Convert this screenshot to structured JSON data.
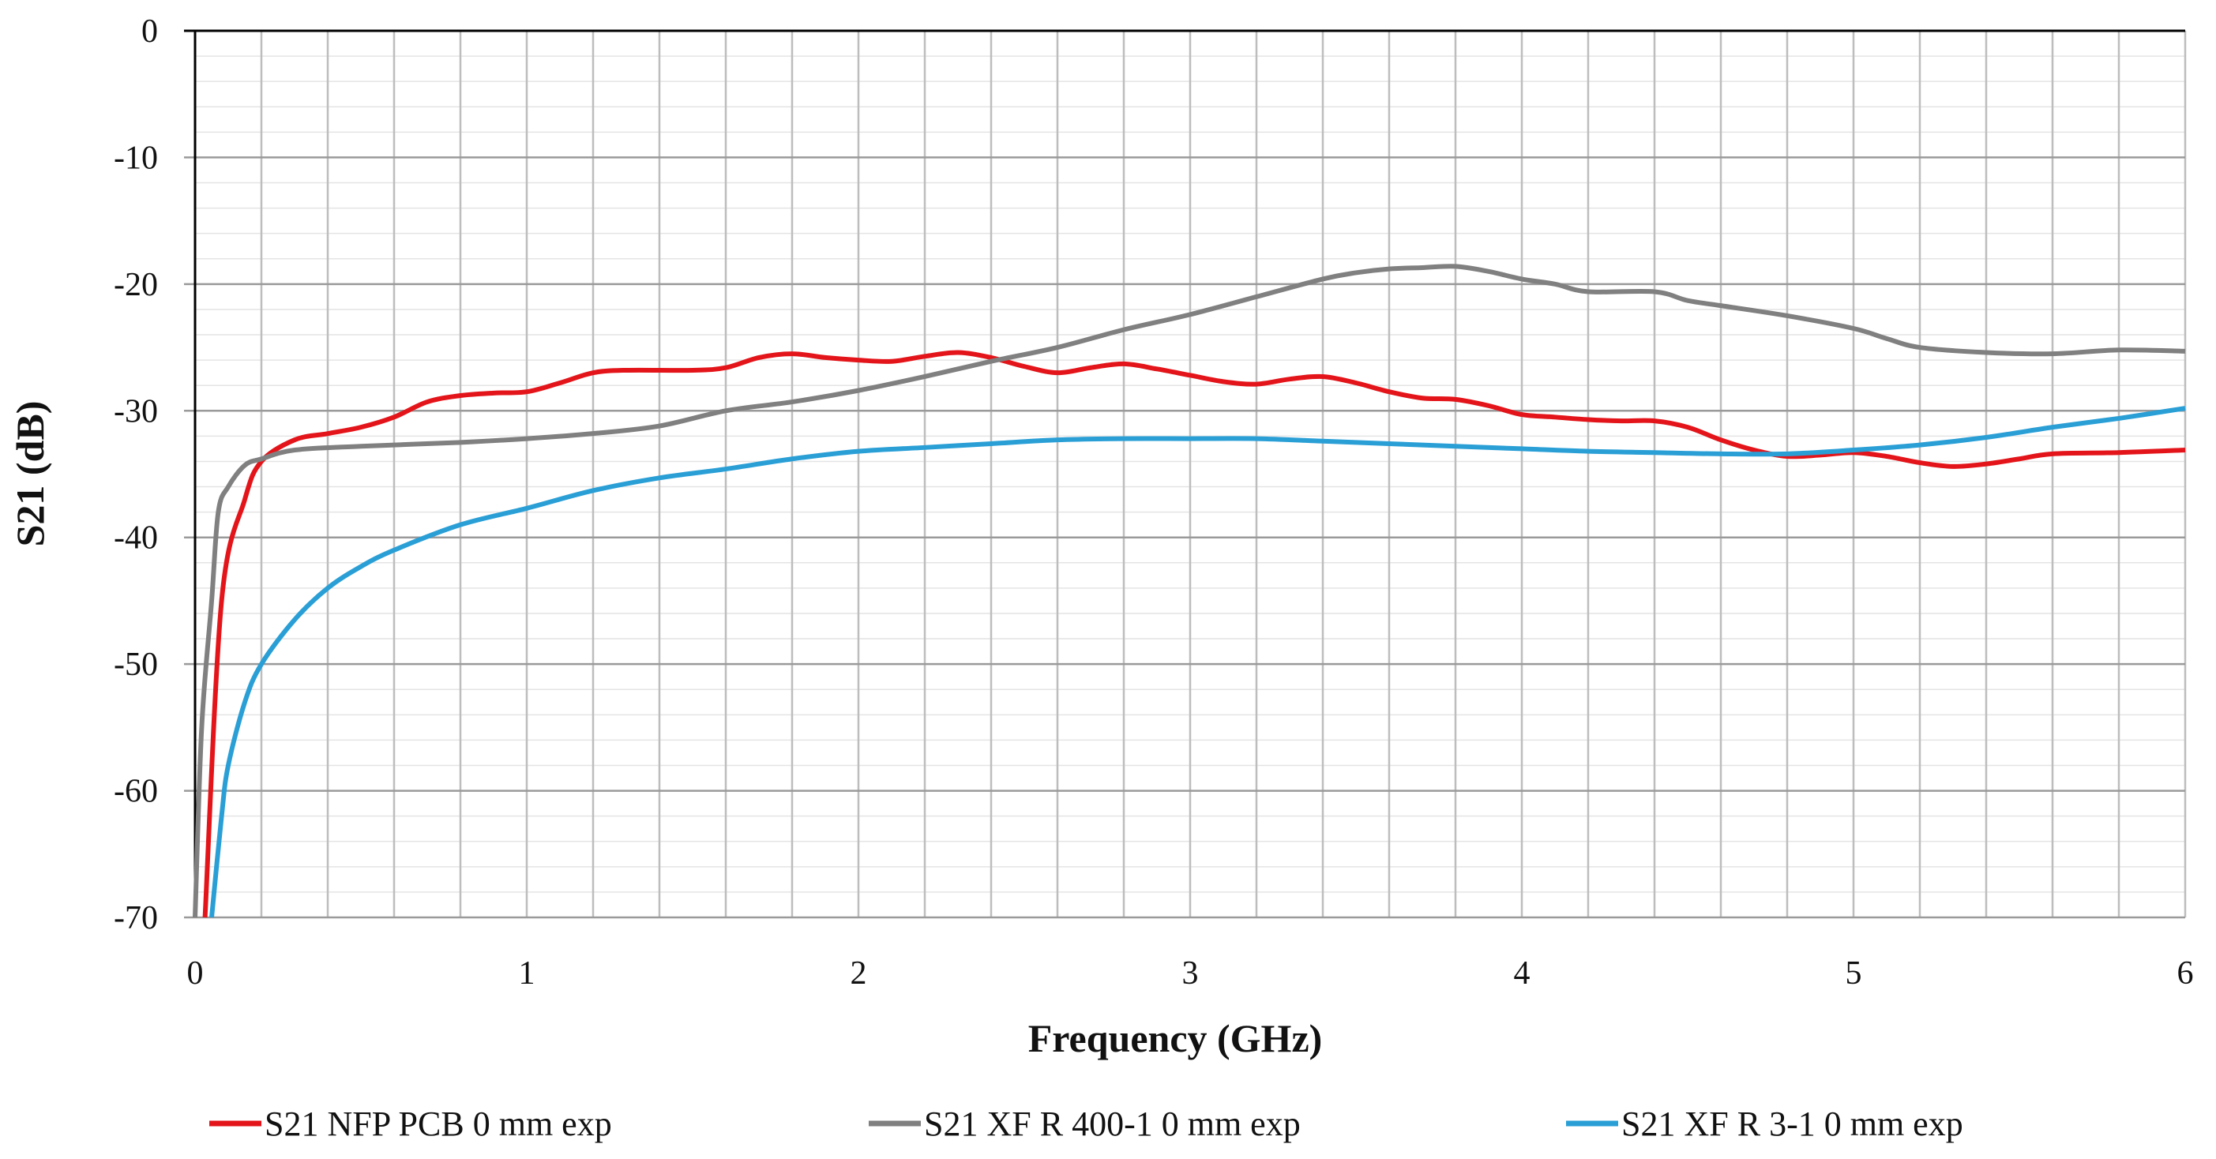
{
  "chart_data": {
    "type": "line",
    "title": "",
    "xlabel": "Frequency (GHz)",
    "ylabel": "S21 (dB)",
    "xlim": [
      0,
      6
    ],
    "ylim": [
      -70,
      0
    ],
    "xticks": [
      "0",
      "1",
      "2",
      "3",
      "4",
      "5",
      "6"
    ],
    "yticks": [
      "0",
      "-10",
      "-20",
      "-30",
      "-40",
      "-50",
      "-60",
      "-70"
    ],
    "grid": true,
    "legend_position": "bottom",
    "series": [
      {
        "name": "S21 NFP PCB 0 mm exp",
        "color": "#e3151a",
        "x": [
          0.03,
          0.08,
          0.15,
          0.2,
          0.3,
          0.4,
          0.5,
          0.6,
          0.7,
          0.8,
          0.9,
          1.0,
          1.1,
          1.2,
          1.3,
          1.5,
          1.6,
          1.7,
          1.8,
          1.9,
          2.0,
          2.1,
          2.2,
          2.3,
          2.4,
          2.5,
          2.6,
          2.7,
          2.8,
          2.9,
          3.0,
          3.1,
          3.2,
          3.3,
          3.4,
          3.5,
          3.6,
          3.7,
          3.8,
          3.9,
          4.0,
          4.1,
          4.2,
          4.3,
          4.4,
          4.5,
          4.6,
          4.7,
          4.8,
          4.9,
          5.0,
          5.1,
          5.2,
          5.3,
          5.4,
          5.5,
          5.6,
          5.8,
          6.0
        ],
        "y": [
          -70,
          -45,
          -37,
          -34,
          -32.3,
          -31.8,
          -31.3,
          -30.5,
          -29.3,
          -28.8,
          -28.6,
          -28.5,
          -27.8,
          -27.0,
          -26.8,
          -26.8,
          -26.6,
          -25.8,
          -25.5,
          -25.8,
          -26.0,
          -26.1,
          -25.7,
          -25.4,
          -25.8,
          -26.5,
          -27.0,
          -26.6,
          -26.3,
          -26.7,
          -27.2,
          -27.7,
          -27.9,
          -27.5,
          -27.3,
          -27.8,
          -28.5,
          -29.0,
          -29.1,
          -29.6,
          -30.3,
          -30.5,
          -30.7,
          -30.8,
          -30.8,
          -31.3,
          -32.3,
          -33.1,
          -33.6,
          -33.5,
          -33.3,
          -33.6,
          -34.1,
          -34.4,
          -34.2,
          -33.8,
          -33.4,
          -33.3,
          -33.1
        ]
      },
      {
        "name": "S21 XF R 400-1 0 mm exp",
        "color": "#808080",
        "x": [
          0.0,
          0.02,
          0.05,
          0.07,
          0.1,
          0.15,
          0.2,
          0.3,
          0.5,
          0.8,
          1.0,
          1.2,
          1.4,
          1.6,
          1.8,
          2.0,
          2.2,
          2.4,
          2.6,
          2.8,
          3.0,
          3.2,
          3.4,
          3.5,
          3.6,
          3.7,
          3.8,
          3.9,
          4.0,
          4.1,
          4.2,
          4.4,
          4.5,
          4.6,
          4.8,
          5.0,
          5.1,
          5.2,
          5.4,
          5.6,
          5.8,
          6.0
        ],
        "y": [
          -70,
          -55,
          -45,
          -38,
          -36,
          -34.3,
          -33.8,
          -33.1,
          -32.8,
          -32.5,
          -32.2,
          -31.8,
          -31.2,
          -30.0,
          -29.3,
          -28.4,
          -27.3,
          -26.1,
          -25.0,
          -23.6,
          -22.4,
          -21.0,
          -19.6,
          -19.1,
          -18.8,
          -18.7,
          -18.6,
          -19.0,
          -19.6,
          -20.0,
          -20.6,
          -20.6,
          -21.3,
          -21.7,
          -22.5,
          -23.5,
          -24.3,
          -25.0,
          -25.4,
          -25.5,
          -25.2,
          -25.3
        ]
      },
      {
        "name": "S21 XF R 3-1 0 mm exp",
        "color": "#2a9fd6",
        "x": [
          0.05,
          0.08,
          0.1,
          0.15,
          0.2,
          0.3,
          0.4,
          0.5,
          0.6,
          0.8,
          1.0,
          1.2,
          1.4,
          1.6,
          1.8,
          2.0,
          2.2,
          2.4,
          2.6,
          2.8,
          3.0,
          3.2,
          3.4,
          3.6,
          3.8,
          4.0,
          4.2,
          4.4,
          4.6,
          4.8,
          5.0,
          5.2,
          5.4,
          5.6,
          5.8,
          6.0
        ],
        "y": [
          -70,
          -62,
          -58,
          -53,
          -50,
          -46.5,
          -44,
          -42.3,
          -41,
          -39,
          -37.7,
          -36.3,
          -35.3,
          -34.6,
          -33.8,
          -33.2,
          -32.9,
          -32.6,
          -32.3,
          -32.2,
          -32.2,
          -32.2,
          -32.4,
          -32.6,
          -32.8,
          -33.0,
          -33.2,
          -33.3,
          -33.4,
          -33.4,
          -33.1,
          -32.7,
          -32.1,
          -31.3,
          -30.6,
          -29.8
        ]
      }
    ]
  }
}
